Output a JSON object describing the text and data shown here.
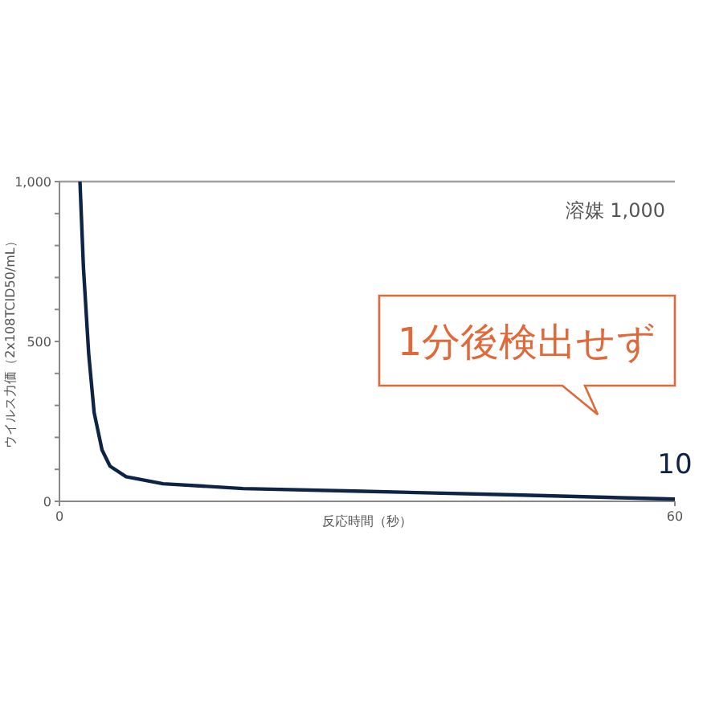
{
  "chart_data": {
    "type": "line",
    "xlabel": "反応時間（秒）",
    "ylabel": "ウイルス力価（2x108TCID50/mL）",
    "xlim": [
      0,
      60
    ],
    "ylim": [
      0,
      1000
    ],
    "xticks": [
      0,
      60
    ],
    "yticks": [
      0,
      {
        "value": 100,
        "label": null
      },
      {
        "value": 200,
        "label": null
      },
      {
        "value": 300,
        "label": null
      },
      {
        "value": 400,
        "label": null
      },
      {
        "value": 500,
        "label": "500"
      },
      {
        "value": 600,
        "label": null
      },
      {
        "value": 700,
        "label": null
      },
      {
        "value": 800,
        "label": null
      },
      {
        "value": 900,
        "label": null
      },
      {
        "value": 1000,
        "label": "1,000"
      }
    ],
    "ref_lines": [
      {
        "axis": "y",
        "value": 1000,
        "label": "溶媒 1,000",
        "color": "#a0a0a0"
      }
    ],
    "annotations": [
      "1分後検出せず"
    ],
    "series": [
      {
        "name": "10",
        "color": "#0d2447",
        "x": [
          2.0,
          2.34,
          2.85,
          3.38,
          4.15,
          4.93,
          6.5,
          10.1,
          17.9,
          28.8,
          44.4,
          60
        ],
        "values": [
          1000,
          730,
          462,
          278,
          161,
          110,
          77,
          55,
          40,
          32,
          20,
          7
        ]
      }
    ]
  }
}
